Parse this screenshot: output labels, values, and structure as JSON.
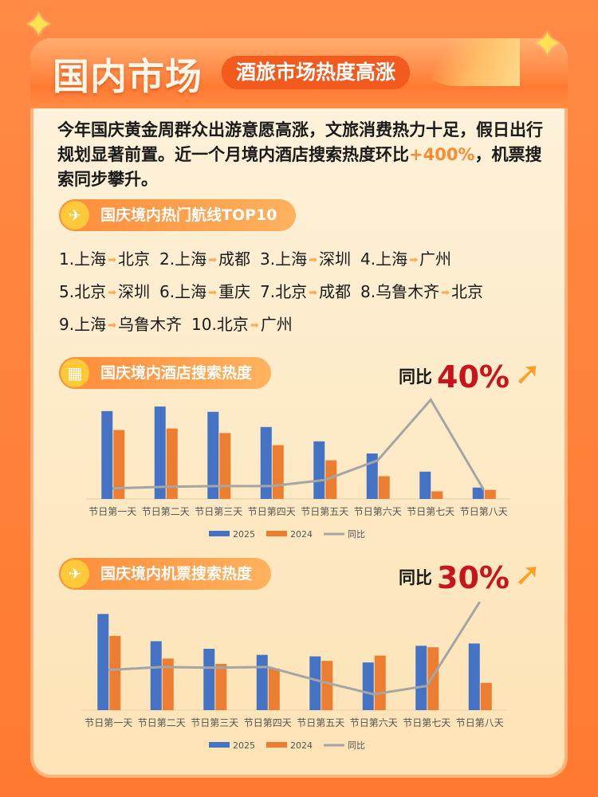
{
  "header": {
    "title": "国内市场",
    "subtitle": "酒旅市场热度高涨"
  },
  "intro": {
    "text_before": "今年国庆黄金周群众出游意愿高涨，文旅消费热力十足，假日出行规划显著前置。近一个月境内酒店搜索热度环比",
    "highlight": "+400%",
    "text_after": "，机票搜索同步攀升。"
  },
  "routes": {
    "title": "国庆境内热门航线TOP10",
    "icon": "airplane-icon",
    "rows": [
      [
        {
          "n": "1.",
          "from": "上海",
          "to": "北京"
        },
        {
          "n": "2.",
          "from": "上海",
          "to": "成都"
        },
        {
          "n": "3.",
          "from": "上海",
          "to": "深圳"
        },
        {
          "n": "4.",
          "from": "上海",
          "to": "广州"
        }
      ],
      [
        {
          "n": "5.",
          "from": "北京",
          "to": "深圳"
        },
        {
          "n": "6.",
          "from": "上海",
          "to": "重庆"
        },
        {
          "n": "7.",
          "from": "北京",
          "to": "成都"
        },
        {
          "n": "8.",
          "from": "乌鲁木齐",
          "to": "北京"
        }
      ],
      [
        {
          "n": "9.",
          "from": "上海",
          "to": "乌鲁木齐"
        },
        {
          "n": "10.",
          "from": "北京",
          "to": "广州"
        }
      ]
    ]
  },
  "hotel": {
    "title": "国庆境内酒店搜索热度",
    "icon": "hotel-icon",
    "yoy_label": "同比",
    "yoy_value": "40%"
  },
  "flight": {
    "title": "国庆境内机票搜索热度",
    "icon": "airplane-icon",
    "yoy_label": "同比",
    "yoy_value": "30%"
  },
  "colors": {
    "s2025": "#4472c4",
    "s2024": "#ed7d31",
    "yoy": "#a5a5a5",
    "accent": "#c8141c"
  },
  "chart_data": [
    {
      "type": "bar",
      "categories": [
        "节日第一天",
        "节日第二天",
        "节日第三天",
        "节日第四天",
        "节日第五天",
        "节日第六天",
        "节日第七天",
        "节日第八天"
      ],
      "series": [
        {
          "name": "2025",
          "type": "bar",
          "values": [
            116,
            122,
            115,
            95,
            76,
            60,
            36,
            15
          ]
        },
        {
          "name": "2024",
          "type": "bar",
          "values": [
            91,
            93,
            87,
            71,
            51,
            30,
            10,
            12
          ]
        },
        {
          "name": "同比",
          "type": "line",
          "values": [
            14,
            16,
            17,
            17,
            25,
            51,
            131,
            12
          ]
        }
      ],
      "legend": "bottom",
      "grid": false
    },
    {
      "type": "bar",
      "categories": [
        "节日第一天",
        "节日第二天",
        "节日第三天",
        "节日第四天",
        "节日第五天",
        "节日第六天",
        "节日第七天",
        "节日第八天"
      ],
      "series": [
        {
          "name": "2025",
          "type": "bar",
          "values": [
            127,
            91,
            81,
            73,
            71,
            63,
            85,
            88
          ]
        },
        {
          "name": "2024",
          "type": "bar",
          "values": [
            98,
            68,
            61,
            55,
            65,
            72,
            83,
            36
          ]
        },
        {
          "name": "同比",
          "type": "line",
          "values": [
            53,
            57,
            56,
            57,
            38,
            21,
            32,
            143
          ]
        }
      ],
      "legend": "bottom",
      "grid": false
    }
  ]
}
